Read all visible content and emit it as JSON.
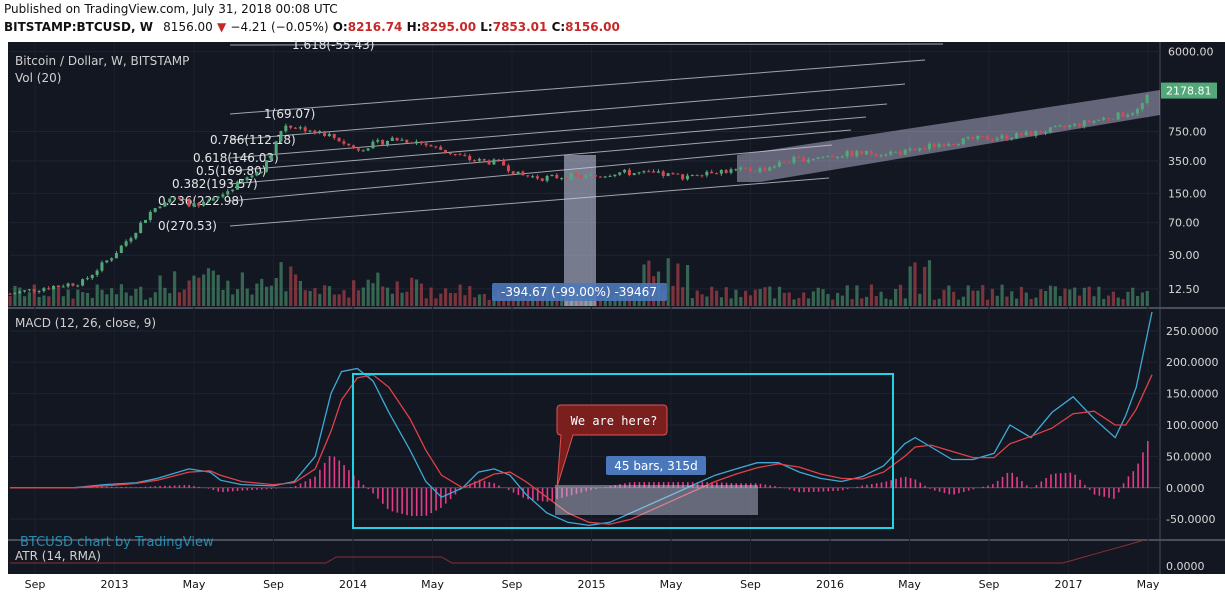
{
  "header": {
    "published": "Published on TradingView.com, July 31, 2018 00:08 UTC",
    "symbol": "BITSTAMP:BTCUSD, W",
    "last": "8156.00",
    "change_arrow": "▼",
    "change": "−4.21 (−0.05%)",
    "open_label": "O:",
    "open": "8216.74",
    "high_label": "H:",
    "high": "8295.00",
    "low_label": "L:",
    "low": "7853.01",
    "close_label": "C:",
    "close": "8156.00"
  },
  "colors": {
    "background": "#131722",
    "up": "#53a87a",
    "down": "#d24b52",
    "macd_line": "#3ea9d6",
    "signal_line": "#e0414a",
    "histogram": "#e23c8a",
    "box_outline": "#22d3e6"
  },
  "chart_data": [
    {
      "type": "candlestick",
      "title": "Bitcoin / Dollar, W, BITSTAMP",
      "volume_label": "Vol (20)",
      "y_scale": "log",
      "y_ticks": [
        "6000.00",
        "750.00",
        "350.00",
        "150.00",
        "70.00",
        "30.00",
        "12.50"
      ],
      "ylim": [
        8,
        6600
      ],
      "last_price_label": "2178.81",
      "x_ticks": [
        "Sep",
        "2013",
        "May",
        "Sep",
        "2014",
        "May",
        "Sep",
        "2015",
        "May",
        "Sep",
        "2016",
        "May",
        "Sep",
        "2017",
        "May"
      ],
      "price_path": [
        [
          0,
          11
        ],
        [
          30,
          13
        ],
        [
          60,
          15
        ],
        [
          85,
          30
        ],
        [
          100,
          50
        ],
        [
          115,
          90
        ],
        [
          130,
          135
        ],
        [
          145,
          120
        ],
        [
          155,
          105
        ],
        [
          170,
          130
        ],
        [
          190,
          200
        ],
        [
          210,
          300
        ],
        [
          226,
          900
        ],
        [
          240,
          820
        ],
        [
          255,
          760
        ],
        [
          270,
          620
        ],
        [
          285,
          470
        ],
        [
          300,
          540
        ],
        [
          315,
          620
        ],
        [
          335,
          580
        ],
        [
          355,
          470
        ],
        [
          380,
          360
        ],
        [
          405,
          330
        ],
        [
          420,
          240
        ],
        [
          440,
          225
        ],
        [
          460,
          235
        ],
        [
          480,
          230
        ],
        [
          500,
          260
        ],
        [
          530,
          250
        ],
        [
          555,
          235
        ],
        [
          575,
          268
        ],
        [
          595,
          270
        ],
        [
          620,
          280
        ],
        [
          645,
          360
        ],
        [
          665,
          380
        ],
        [
          690,
          420
        ],
        [
          715,
          430
        ],
        [
          740,
          440
        ],
        [
          770,
          560
        ],
        [
          795,
          615
        ],
        [
          820,
          650
        ],
        [
          845,
          720
        ],
        [
          870,
          840
        ],
        [
          895,
          1000
        ],
        [
          915,
          1150
        ],
        [
          930,
          1300
        ],
        [
          942,
          2150
        ]
      ],
      "fibonacci": {
        "levels": [
          {
            "label": "1.618(-55.43)"
          },
          {
            "label": "1(69.07)"
          },
          {
            "label": "0.786(112.18)"
          },
          {
            "label": "0.618(146.03)"
          },
          {
            "label": "0.5(169.80)"
          },
          {
            "label": "0.382(193.57)"
          },
          {
            "label": "0.236(222.98)"
          },
          {
            "label": "0(270.53)"
          }
        ]
      },
      "measure_label": "-394.67 (-99.00%) -39467"
    },
    {
      "type": "line",
      "title": "MACD (12, 26, close, 9)",
      "y_ticks": [
        "250.0000",
        "200.0000",
        "150.0000",
        "100.0000",
        "50.0000",
        "0.0000",
        "-50.0000"
      ],
      "ylim": [
        -80,
        280
      ],
      "series": [
        {
          "name": "MACD",
          "values": [
            [
              0,
              0
            ],
            [
              60,
              0
            ],
            [
              90,
              5
            ],
            [
              120,
              8
            ],
            [
              140,
              15
            ],
            [
              170,
              30
            ],
            [
              190,
              25
            ],
            [
              200,
              12
            ],
            [
              220,
              5
            ],
            [
              250,
              3
            ],
            [
              270,
              10
            ],
            [
              290,
              50
            ],
            [
              305,
              150
            ],
            [
              315,
              185
            ],
            [
              330,
              190
            ],
            [
              345,
              170
            ],
            [
              360,
              120
            ],
            [
              380,
              60
            ],
            [
              395,
              10
            ],
            [
              410,
              -15
            ],
            [
              430,
              0
            ],
            [
              445,
              25
            ],
            [
              460,
              30
            ],
            [
              475,
              20
            ],
            [
              490,
              -10
            ],
            [
              510,
              -40
            ],
            [
              530,
              -55
            ],
            [
              550,
              -60
            ],
            [
              570,
              -55
            ],
            [
              590,
              -40
            ],
            [
              610,
              -25
            ],
            [
              630,
              -10
            ],
            [
              650,
              5
            ],
            [
              670,
              20
            ],
            [
              690,
              30
            ],
            [
              710,
              40
            ],
            [
              730,
              40
            ],
            [
              750,
              25
            ],
            [
              770,
              15
            ],
            [
              790,
              10
            ],
            [
              810,
              18
            ],
            [
              830,
              35
            ],
            [
              850,
              70
            ],
            [
              860,
              80
            ],
            [
              875,
              65
            ],
            [
              895,
              45
            ],
            [
              915,
              45
            ],
            [
              935,
              55
            ],
            [
              950,
              100
            ],
            [
              970,
              80
            ],
            [
              990,
              120
            ],
            [
              1010,
              145
            ],
            [
              1030,
              110
            ],
            [
              1050,
              80
            ],
            [
              1060,
              115
            ],
            [
              1070,
              160
            ],
            [
              1085,
              280
            ]
          ]
        },
        {
          "name": "Signal",
          "values": [
            [
              0,
              0
            ],
            [
              60,
              0
            ],
            [
              90,
              3
            ],
            [
              120,
              7
            ],
            [
              140,
              12
            ],
            [
              170,
              25
            ],
            [
              190,
              27
            ],
            [
              200,
              20
            ],
            [
              220,
              10
            ],
            [
              250,
              5
            ],
            [
              270,
              8
            ],
            [
              290,
              30
            ],
            [
              305,
              90
            ],
            [
              315,
              140
            ],
            [
              330,
              175
            ],
            [
              345,
              180
            ],
            [
              360,
              160
            ],
            [
              380,
              110
            ],
            [
              395,
              60
            ],
            [
              410,
              20
            ],
            [
              430,
              0
            ],
            [
              445,
              10
            ],
            [
              460,
              22
            ],
            [
              475,
              25
            ],
            [
              490,
              10
            ],
            [
              510,
              -15
            ],
            [
              530,
              -40
            ],
            [
              550,
              -55
            ],
            [
              570,
              -58
            ],
            [
              590,
              -50
            ],
            [
              610,
              -35
            ],
            [
              630,
              -20
            ],
            [
              650,
              -5
            ],
            [
              670,
              10
            ],
            [
              690,
              22
            ],
            [
              710,
              32
            ],
            [
              730,
              38
            ],
            [
              750,
              33
            ],
            [
              770,
              22
            ],
            [
              790,
              15
            ],
            [
              810,
              14
            ],
            [
              830,
              25
            ],
            [
              850,
              50
            ],
            [
              860,
              65
            ],
            [
              875,
              68
            ],
            [
              895,
              58
            ],
            [
              915,
              48
            ],
            [
              935,
              48
            ],
            [
              950,
              70
            ],
            [
              970,
              82
            ],
            [
              990,
              95
            ],
            [
              1010,
              118
            ],
            [
              1030,
              122
            ],
            [
              1050,
              100
            ],
            [
              1060,
              100
            ],
            [
              1070,
              125
            ],
            [
              1085,
              180
            ]
          ]
        }
      ],
      "annotations": {
        "callout": "We are here?",
        "range_label": "45 bars, 315d"
      }
    },
    {
      "type": "line",
      "title": "ATR (14, RMA)",
      "y_ticks": [
        "0.0000"
      ],
      "watermark": "BTCUSD chart by TradingView"
    }
  ]
}
